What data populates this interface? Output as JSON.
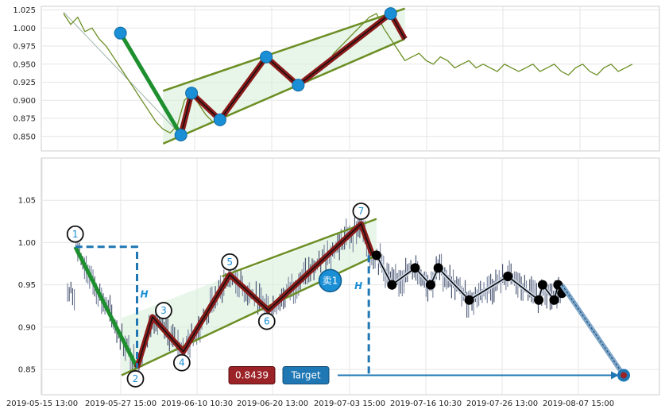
{
  "chart_data": [
    {
      "type": "line",
      "panel": "top",
      "ylim": [
        0.83,
        1.03
      ],
      "yticks": [
        "1.025",
        "1.000",
        "0.975",
        "0.950",
        "0.925",
        "0.900",
        "0.875",
        "0.850"
      ],
      "grid": true,
      "price_series": {
        "name": "",
        "color": "#6b8e23",
        "x": [
          0,
          2,
          4,
          6,
          8,
          10,
          12,
          14,
          16,
          18,
          20,
          22,
          24,
          26,
          28,
          30,
          32,
          34,
          36,
          38,
          40,
          42,
          44,
          46,
          48,
          50,
          52,
          54,
          56,
          58,
          60,
          62,
          64,
          66,
          68,
          70,
          72,
          74,
          76,
          78,
          80,
          82,
          84,
          86,
          88,
          90,
          92,
          94,
          96,
          98,
          100,
          102,
          104,
          106,
          108,
          110,
          112,
          114,
          116,
          118,
          120,
          122,
          124,
          126,
          128,
          130,
          132,
          134,
          136,
          138,
          140,
          142,
          144,
          146,
          148,
          150,
          152,
          154,
          156,
          158,
          160
        ],
        "values": [
          1.02,
          1.005,
          1.015,
          0.995,
          1.0,
          0.985,
          0.975,
          0.96,
          0.945,
          0.93,
          0.915,
          0.9,
          0.885,
          0.87,
          0.86,
          0.855,
          0.865,
          0.9,
          0.91,
          0.895,
          0.88,
          0.87,
          0.875,
          0.885,
          0.9,
          0.915,
          0.925,
          0.94,
          0.955,
          0.96,
          0.95,
          0.935,
          0.925,
          0.92,
          0.93,
          0.94,
          0.945,
          0.95,
          0.965,
          0.975,
          0.985,
          0.995,
          1.005,
          1.015,
          1.02,
          1.0,
          0.985,
          0.97,
          0.955,
          0.96,
          0.965,
          0.955,
          0.95,
          0.96,
          0.955,
          0.945,
          0.95,
          0.955,
          0.945,
          0.95,
          0.945,
          0.94,
          0.95,
          0.945,
          0.94,
          0.945,
          0.95,
          0.94,
          0.945,
          0.95,
          0.94,
          0.935,
          0.945,
          0.95,
          0.94,
          0.935,
          0.945,
          0.95,
          0.94,
          0.945,
          0.95
        ]
      },
      "pivots": [
        {
          "x": 16,
          "y": 0.993
        },
        {
          "x": 33,
          "y": 0.852
        },
        {
          "x": 36,
          "y": 0.91
        },
        {
          "x": 44,
          "y": 0.873
        },
        {
          "x": 57,
          "y": 0.96
        },
        {
          "x": 66,
          "y": 0.921
        },
        {
          "x": 92,
          "y": 1.02
        }
      ],
      "channel_upper": [
        {
          "x": 28,
          "y": 0.913
        },
        {
          "x": 96,
          "y": 1.027
        }
      ],
      "channel_lower": [
        {
          "x": 28,
          "y": 0.84
        },
        {
          "x": 96,
          "y": 0.985
        }
      ]
    },
    {
      "type": "candlestick",
      "panel": "bottom",
      "ylim": [
        0.82,
        1.1
      ],
      "yticks": [
        "1.05",
        "1.00",
        "0.95",
        "0.90",
        "0.85"
      ],
      "xticks": [
        "2019-05-15 13:00",
        "2019-05-27 15:00",
        "2019-06-10 10:30",
        "2019-06-20 13:00",
        "2019-07-03 15:00",
        "2019-07-16 10:30",
        "2019-07-26 13:00",
        "2019-08-07 15:00"
      ],
      "grid": true,
      "pattern_points": [
        {
          "label": "1",
          "x": 1,
          "y": 0.995
        },
        {
          "label": "2",
          "x": 9,
          "y": 0.852
        },
        {
          "label": "3",
          "x": 11,
          "y": 0.912
        },
        {
          "label": "4",
          "x": 15,
          "y": 0.871
        },
        {
          "label": "5",
          "x": 21,
          "y": 0.962
        },
        {
          "label": "6",
          "x": 26,
          "y": 0.92
        },
        {
          "label": "7",
          "x": 38,
          "y": 1.022
        }
      ],
      "forecast_points": [
        {
          "x": 40,
          "y": 0.985
        },
        {
          "x": 42,
          "y": 0.95
        },
        {
          "x": 45,
          "y": 0.97
        },
        {
          "x": 47,
          "y": 0.95
        },
        {
          "x": 48,
          "y": 0.97
        },
        {
          "x": 52,
          "y": 0.932
        },
        {
          "x": 57,
          "y": 0.96
        },
        {
          "x": 61,
          "y": 0.932
        },
        {
          "x": 61.5,
          "y": 0.95
        },
        {
          "x": 63,
          "y": 0.932
        },
        {
          "x": 63.5,
          "y": 0.95
        },
        {
          "x": 64,
          "y": 0.94
        }
      ],
      "forecast_end": {
        "x": 72,
        "y": 0.843
      },
      "channel_upper": [
        {
          "x": 7,
          "y": 0.905
        },
        {
          "x": 40,
          "y": 1.028
        }
      ],
      "channel_lower": [
        {
          "x": 7,
          "y": 0.843
        },
        {
          "x": 40,
          "y": 0.985
        }
      ],
      "sell_marker": {
        "label": "卖1",
        "x": 34,
        "y": 0.955
      },
      "measure_left": {
        "label": "H",
        "top": 0.995,
        "bottom": 0.852
      },
      "measure_right": {
        "label": "H",
        "top": 0.985,
        "bottom": 0.843
      },
      "target_value": "0.8439",
      "target_label": "Target",
      "colors": {
        "up_leg": "#1e8f2e",
        "zigzag": "#8b1a1a",
        "channel": "#6b8e23",
        "measure": "#1f77b4",
        "marker": "#1a8fd6",
        "value_box": "#9b2226",
        "target_box": "#1f77b4",
        "forecast": "#000000"
      }
    }
  ]
}
